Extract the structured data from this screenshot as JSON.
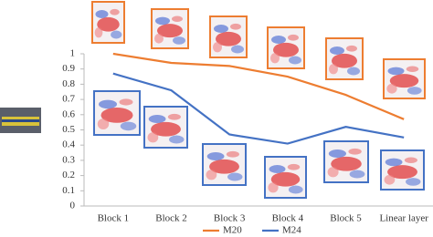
{
  "chart_data": {
    "type": "line",
    "categories": [
      "Block 1",
      "Block 2",
      "Block 3",
      "Block 4",
      "Block 5",
      "Linear layer"
    ],
    "series": [
      {
        "name": "M20",
        "color": "#ed7d31",
        "values": [
          1.0,
          0.94,
          0.92,
          0.85,
          0.73,
          0.57
        ]
      },
      {
        "name": "M24",
        "color": "#4472c4",
        "values": [
          0.87,
          0.76,
          0.47,
          0.41,
          0.52,
          0.45
        ]
      }
    ],
    "ylim": [
      0,
      1
    ],
    "yticks": [
      0,
      0.1,
      0.2,
      0.3,
      0.4,
      0.5,
      0.6,
      0.7,
      0.8,
      0.9,
      1
    ],
    "grid": false
  }
}
